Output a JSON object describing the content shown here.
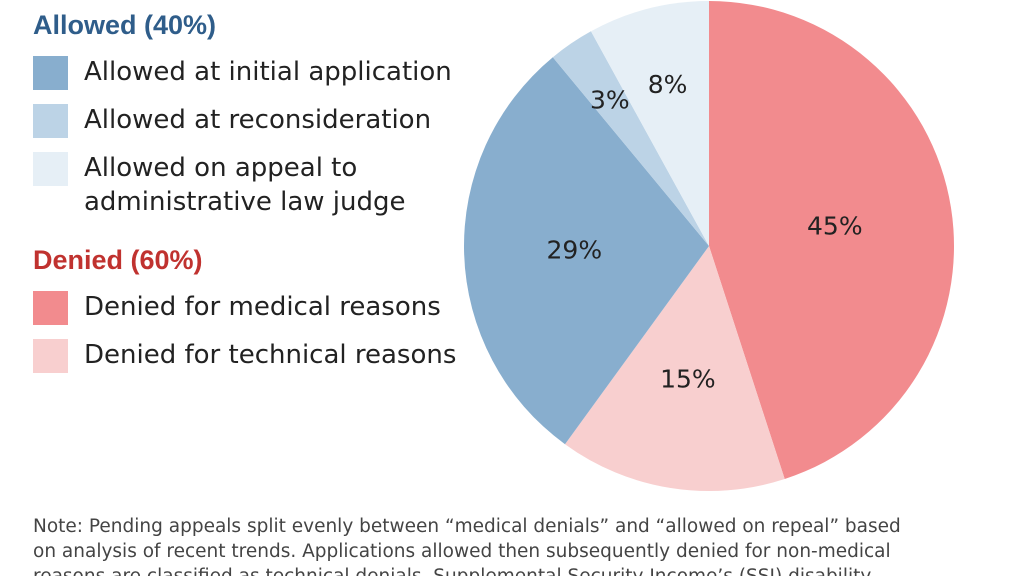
{
  "legend": {
    "allowed_title": "Allowed (40%)",
    "denied_title": "Denied (60%)",
    "allowed_items": [
      {
        "label": "Allowed at initial application",
        "color": "#88aece"
      },
      {
        "label": "Allowed at reconsideration",
        "color": "#bcd3e6"
      },
      {
        "label": "Allowed on appeal to\nadministrative law judge",
        "color": "#e6eff6"
      }
    ],
    "denied_items": [
      {
        "label": "Denied for medical reasons",
        "color": "#f28b8e"
      },
      {
        "label": "Denied for technical reasons",
        "color": "#f8cfcf"
      }
    ]
  },
  "note": {
    "lines": [
      "Note: Pending appeals split evenly between “medical denials” and “allowed on repeal” based",
      "on analysis of recent trends. Applications allowed then subsequently denied for non-medical",
      "reasons are classified as technical denials. Supplemental Security Income’s (SSI) disability"
    ]
  },
  "chart_data": {
    "type": "pie",
    "start": "12 o'clock, clockwise",
    "slices": [
      {
        "name": "Denied for medical reasons",
        "value": 45,
        "label": "45%",
        "color": "#f28b8e"
      },
      {
        "name": "Denied for technical reasons",
        "value": 15,
        "label": "15%",
        "color": "#f8cfcf"
      },
      {
        "name": "Allowed at initial application",
        "value": 29,
        "label": "29%",
        "color": "#88aece"
      },
      {
        "name": "Allowed at reconsideration",
        "value": 3,
        "label": "3%",
        "color": "#bcd3e6"
      },
      {
        "name": "Allowed on appeal to administrative law judge",
        "value": 8,
        "label": "8%",
        "color": "#e6eff6"
      }
    ],
    "groups": [
      {
        "name": "Allowed (40%)",
        "value": 40
      },
      {
        "name": "Denied (60%)",
        "value": 60
      }
    ]
  }
}
